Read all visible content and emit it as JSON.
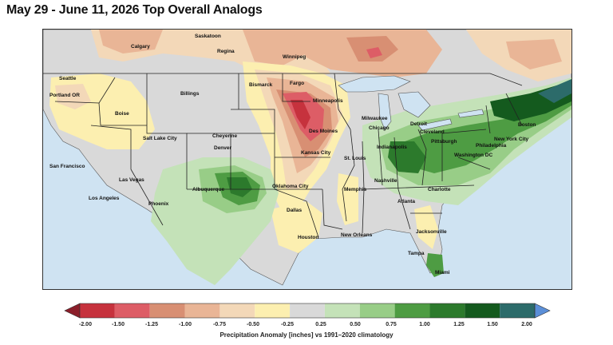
{
  "title": "May 29 - June 11, 2026 Top Overall Analogs",
  "colorbar": {
    "label": "Precipitation Anomaly [inches] vs 1991–2020 climatology",
    "ticks": [
      "-2.00",
      "-1.50",
      "-1.25",
      "-1.00",
      "-0.75",
      "-0.50",
      "-0.25",
      "0.25",
      "0.50",
      "0.75",
      "1.00",
      "1.25",
      "1.50",
      "2.00"
    ],
    "colors": [
      "#c6323d",
      "#dd5d66",
      "#d88f73",
      "#e9b596",
      "#f3d8b8",
      "#fcefb0",
      "#d9d9d9",
      "#c4e2b8",
      "#98cd87",
      "#4e9c43",
      "#2c7a2c",
      "#145a1e",
      "#2c6b6a"
    ],
    "extend_low": "#8b1e2a",
    "extend_high": "#5b8fd8"
  },
  "cities": [
    {
      "name": "Calgary",
      "id": "calgary"
    },
    {
      "name": "Saskatoon",
      "id": "saskatoon"
    },
    {
      "name": "Regina",
      "id": "regina"
    },
    {
      "name": "Winnipeg",
      "id": "winnipeg"
    },
    {
      "name": "Seattle",
      "id": "seattle"
    },
    {
      "name": "Portland OR",
      "id": "portland"
    },
    {
      "name": "Billings",
      "id": "billings"
    },
    {
      "name": "Bismarck",
      "id": "bismarck"
    },
    {
      "name": "Fargo",
      "id": "fargo"
    },
    {
      "name": "Minneapolis",
      "id": "minneapolis"
    },
    {
      "name": "Boise",
      "id": "boise"
    },
    {
      "name": "Milwaukee",
      "id": "milwaukee"
    },
    {
      "name": "Detroit",
      "id": "detroit"
    },
    {
      "name": "Boston",
      "id": "boston"
    },
    {
      "name": "Cheyenne",
      "id": "cheyenne"
    },
    {
      "name": "Des Moines",
      "id": "desmoines"
    },
    {
      "name": "Chicago",
      "id": "chicago"
    },
    {
      "name": "Cleveland",
      "id": "cleveland"
    },
    {
      "name": "New York City",
      "id": "nyc"
    },
    {
      "name": "Salt Lake City",
      "id": "slc"
    },
    {
      "name": "Denver",
      "id": "denver"
    },
    {
      "name": "Indianapolis",
      "id": "indianapolis"
    },
    {
      "name": "Pittsburgh",
      "id": "pittsburgh"
    },
    {
      "name": "Philadelphia",
      "id": "philadelphia"
    },
    {
      "name": "Kansas City",
      "id": "kansascity"
    },
    {
      "name": "Washington DC",
      "id": "dc"
    },
    {
      "name": "San Francisco",
      "id": "sf"
    },
    {
      "name": "St. Louis",
      "id": "stlouis"
    },
    {
      "name": "Las Vegas",
      "id": "lasvegas"
    },
    {
      "name": "Albuquerque",
      "id": "albuquerque"
    },
    {
      "name": "Oklahoma City",
      "id": "okc"
    },
    {
      "name": "Nashville",
      "id": "nashville"
    },
    {
      "name": "Memphis",
      "id": "memphis"
    },
    {
      "name": "Charlotte",
      "id": "charlotte"
    },
    {
      "name": "Los Angeles",
      "id": "la"
    },
    {
      "name": "Atlanta",
      "id": "atlanta"
    },
    {
      "name": "Phoenix",
      "id": "phoenix"
    },
    {
      "name": "Dallas",
      "id": "dallas"
    },
    {
      "name": "Jacksonville",
      "id": "jacksonville"
    },
    {
      "name": "Houston",
      "id": "houston"
    },
    {
      "name": "New Orleans",
      "id": "neworleans"
    },
    {
      "name": "Tampa",
      "id": "tampa"
    },
    {
      "name": "Miami",
      "id": "miami"
    }
  ]
}
